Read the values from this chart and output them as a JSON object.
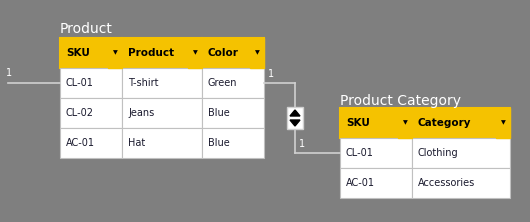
{
  "bg_color": "#7f7f7f",
  "title_color": "#ffffff",
  "table_bg": "#ffffff",
  "header_bg": "#F5C200",
  "header_text": "#000000",
  "cell_text": "#1a1a2e",
  "border_color": "#F5C200",
  "row_border": "#c0c0c0",
  "line_color": "#d0d0d0",
  "label_color": "#ffffff",
  "product_title": "Product",
  "product_headers": [
    "SKU",
    "Product",
    "Color"
  ],
  "product_rows": [
    [
      "CL-01",
      "T-shirt",
      "Green"
    ],
    [
      "CL-02",
      "Jeans",
      "Blue"
    ],
    [
      "AC-01",
      "Hat",
      "Blue"
    ]
  ],
  "cat_title": "Product Category",
  "cat_headers": [
    "SKU",
    "Category"
  ],
  "cat_rows": [
    [
      "CL-01",
      "Clothing"
    ],
    [
      "AC-01",
      "Accessories"
    ]
  ],
  "fig_w": 5.3,
  "fig_h": 2.22,
  "dpi": 100
}
